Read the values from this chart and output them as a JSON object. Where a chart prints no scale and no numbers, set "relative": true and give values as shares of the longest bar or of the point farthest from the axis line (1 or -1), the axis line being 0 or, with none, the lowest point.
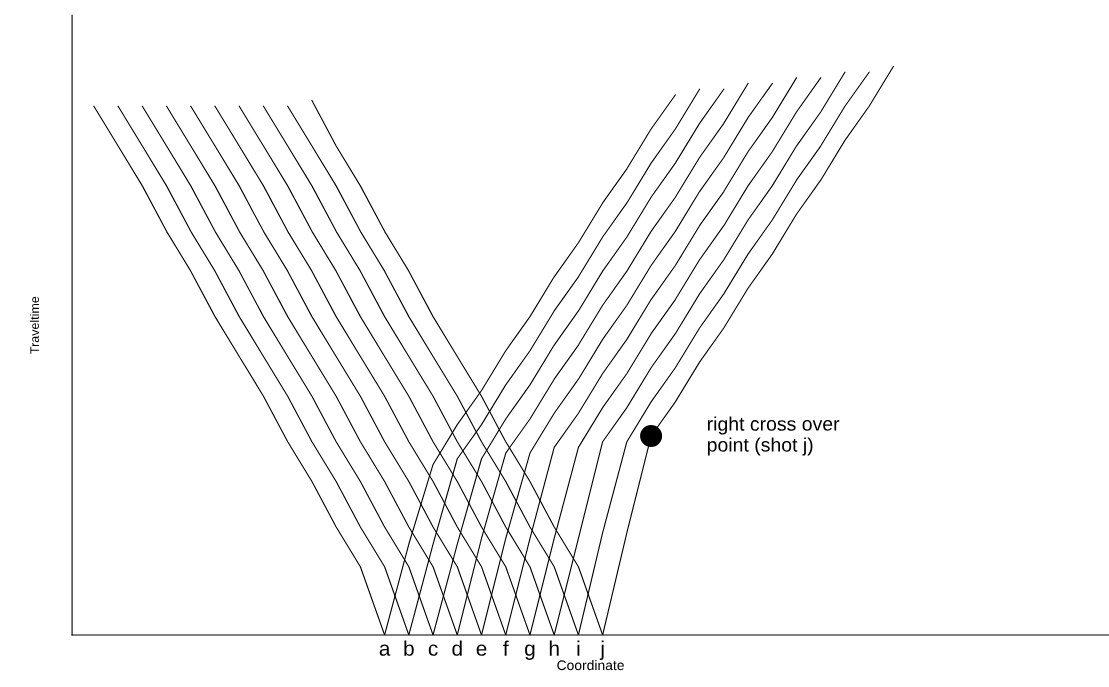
{
  "chart_data": {
    "type": "line",
    "relative": true,
    "xlabel": "Coordinate",
    "ylabel": "Traveltime",
    "categories": [
      null,
      null,
      null,
      null,
      null,
      null,
      null,
      null,
      null,
      null,
      null,
      null,
      "a",
      "b",
      "c",
      "d",
      "e",
      "f",
      "g",
      "h",
      "i",
      "j",
      null,
      null,
      null,
      null,
      null,
      null,
      null,
      null,
      null,
      null,
      null,
      null
    ],
    "marker": "none",
    "line_style": "solid",
    "grid": false,
    "legend": false,
    "series": [
      {
        "color": "#000000",
        "values": [
          0.93,
          0.86,
          0.79,
          0.71,
          0.64,
          0.56,
          0.49,
          0.42,
          0.34,
          0.27,
          0.19,
          0.12,
          0,
          null,
          null,
          null,
          null,
          null,
          null,
          null,
          null,
          null,
          null,
          null,
          null,
          null,
          null,
          null,
          null,
          null,
          null,
          null,
          null,
          null
        ]
      },
      {
        "color": "#000000",
        "values": [
          null,
          0.93,
          0.86,
          0.79,
          0.71,
          0.64,
          0.56,
          0.49,
          0.42,
          0.34,
          0.27,
          0.19,
          0.12,
          0,
          null,
          null,
          null,
          null,
          null,
          null,
          null,
          null,
          null,
          null,
          null,
          null,
          null,
          null,
          null,
          null,
          null,
          null,
          null,
          null
        ]
      },
      {
        "color": "#000000",
        "values": [
          null,
          null,
          0.93,
          0.86,
          0.79,
          0.71,
          0.64,
          0.56,
          0.49,
          0.42,
          0.34,
          0.27,
          0.19,
          0.12,
          0,
          null,
          null,
          null,
          null,
          null,
          null,
          null,
          null,
          null,
          null,
          null,
          null,
          null,
          null,
          null,
          null,
          null,
          null,
          null
        ]
      },
      {
        "color": "#000000",
        "values": [
          null,
          null,
          null,
          0.93,
          0.86,
          0.79,
          0.71,
          0.64,
          0.56,
          0.49,
          0.42,
          0.34,
          0.27,
          0.19,
          0.12,
          0,
          null,
          null,
          null,
          null,
          null,
          null,
          null,
          null,
          null,
          null,
          null,
          null,
          null,
          null,
          null,
          null,
          null,
          null
        ]
      },
      {
        "color": "#000000",
        "values": [
          null,
          null,
          null,
          null,
          0.93,
          0.86,
          0.79,
          0.71,
          0.64,
          0.56,
          0.49,
          0.42,
          0.34,
          0.27,
          0.19,
          0.12,
          0,
          null,
          null,
          null,
          null,
          null,
          null,
          null,
          null,
          null,
          null,
          null,
          null,
          null,
          null,
          null,
          null,
          null
        ]
      },
      {
        "color": "#000000",
        "values": [
          null,
          null,
          null,
          null,
          null,
          0.93,
          0.86,
          0.79,
          0.71,
          0.64,
          0.56,
          0.49,
          0.42,
          0.34,
          0.27,
          0.19,
          0.12,
          0,
          null,
          null,
          null,
          null,
          null,
          null,
          null,
          null,
          null,
          null,
          null,
          null,
          null,
          null,
          null,
          null
        ]
      },
      {
        "color": "#000000",
        "values": [
          null,
          null,
          null,
          null,
          null,
          null,
          0.93,
          0.86,
          0.79,
          0.71,
          0.64,
          0.56,
          0.49,
          0.42,
          0.34,
          0.27,
          0.19,
          0.12,
          0,
          null,
          null,
          null,
          null,
          null,
          null,
          null,
          null,
          null,
          null,
          null,
          null,
          null,
          null,
          null
        ]
      },
      {
        "color": "#000000",
        "values": [
          null,
          null,
          null,
          null,
          null,
          null,
          null,
          0.93,
          0.86,
          0.79,
          0.71,
          0.64,
          0.56,
          0.49,
          0.42,
          0.34,
          0.27,
          0.19,
          0.12,
          0,
          null,
          null,
          null,
          null,
          null,
          null,
          null,
          null,
          null,
          null,
          null,
          null,
          null,
          null
        ]
      },
      {
        "color": "#000000",
        "values": [
          null,
          null,
          null,
          null,
          null,
          null,
          null,
          null,
          0.93,
          0.86,
          0.79,
          0.71,
          0.64,
          0.56,
          0.49,
          0.42,
          0.34,
          0.27,
          0.19,
          0.12,
          0,
          null,
          null,
          null,
          null,
          null,
          null,
          null,
          null,
          null,
          null,
          null,
          null,
          null
        ]
      },
      {
        "color": "#000000",
        "values": [
          null,
          null,
          null,
          null,
          null,
          null,
          null,
          null,
          null,
          0.94,
          0.86,
          0.79,
          0.71,
          0.64,
          0.56,
          0.49,
          0.42,
          0.34,
          0.27,
          0.19,
          0.12,
          0,
          null,
          null,
          null,
          null,
          null,
          null,
          null,
          null,
          null,
          null,
          null,
          null
        ]
      },
      {
        "color": "#000000",
        "values": [
          null,
          null,
          null,
          null,
          null,
          null,
          null,
          null,
          null,
          null,
          null,
          null,
          0,
          0.16,
          0.3,
          0.37,
          0.43,
          0.5,
          0.56,
          0.63,
          0.69,
          0.76,
          0.82,
          0.89,
          0.95,
          null,
          null,
          null,
          null,
          null,
          null,
          null,
          null,
          null
        ]
      },
      {
        "color": "#000000",
        "values": [
          null,
          null,
          null,
          null,
          null,
          null,
          null,
          null,
          null,
          null,
          null,
          null,
          null,
          0,
          0.16,
          0.31,
          0.37,
          0.44,
          0.5,
          0.57,
          0.63,
          0.7,
          0.76,
          0.83,
          0.89,
          0.96,
          null,
          null,
          null,
          null,
          null,
          null,
          null,
          null
        ]
      },
      {
        "color": "#000000",
        "values": [
          null,
          null,
          null,
          null,
          null,
          null,
          null,
          null,
          null,
          null,
          null,
          null,
          null,
          null,
          0,
          0.16,
          0.31,
          0.38,
          0.44,
          0.51,
          0.57,
          0.64,
          0.7,
          0.77,
          0.83,
          0.9,
          0.96,
          null,
          null,
          null,
          null,
          null,
          null,
          null
        ]
      },
      {
        "color": "#000000",
        "values": [
          null,
          null,
          null,
          null,
          null,
          null,
          null,
          null,
          null,
          null,
          null,
          null,
          null,
          null,
          null,
          0,
          0.17,
          0.32,
          0.38,
          0.45,
          0.51,
          0.58,
          0.64,
          0.71,
          0.77,
          0.84,
          0.9,
          0.97,
          null,
          null,
          null,
          null,
          null,
          null
        ]
      },
      {
        "color": "#000000",
        "values": [
          null,
          null,
          null,
          null,
          null,
          null,
          null,
          null,
          null,
          null,
          null,
          null,
          null,
          null,
          null,
          null,
          0,
          0.17,
          0.32,
          0.39,
          0.45,
          0.52,
          0.58,
          0.65,
          0.71,
          0.78,
          0.84,
          0.91,
          0.97,
          null,
          null,
          null,
          null,
          null
        ]
      },
      {
        "color": "#000000",
        "values": [
          null,
          null,
          null,
          null,
          null,
          null,
          null,
          null,
          null,
          null,
          null,
          null,
          null,
          null,
          null,
          null,
          null,
          0,
          0.17,
          0.33,
          0.39,
          0.46,
          0.52,
          0.59,
          0.65,
          0.72,
          0.78,
          0.85,
          0.91,
          0.98,
          null,
          null,
          null,
          null
        ]
      },
      {
        "color": "#000000",
        "values": [
          null,
          null,
          null,
          null,
          null,
          null,
          null,
          null,
          null,
          null,
          null,
          null,
          null,
          null,
          null,
          null,
          null,
          null,
          0,
          0.17,
          0.33,
          0.4,
          0.46,
          0.53,
          0.59,
          0.66,
          0.72,
          0.79,
          0.85,
          0.92,
          0.98,
          null,
          null,
          null
        ]
      },
      {
        "color": "#000000",
        "values": [
          null,
          null,
          null,
          null,
          null,
          null,
          null,
          null,
          null,
          null,
          null,
          null,
          null,
          null,
          null,
          null,
          null,
          null,
          null,
          0,
          0.17,
          0.34,
          0.4,
          0.47,
          0.53,
          0.6,
          0.66,
          0.73,
          0.79,
          0.86,
          0.92,
          0.99,
          null,
          null
        ]
      },
      {
        "color": "#000000",
        "values": [
          null,
          null,
          null,
          null,
          null,
          null,
          null,
          null,
          null,
          null,
          null,
          null,
          null,
          null,
          null,
          null,
          null,
          null,
          null,
          null,
          0,
          0.18,
          0.34,
          0.41,
          0.47,
          0.54,
          0.6,
          0.67,
          0.73,
          0.8,
          0.86,
          0.93,
          0.99,
          null
        ]
      },
      {
        "color": "#000000",
        "values": [
          null,
          null,
          null,
          null,
          null,
          null,
          null,
          null,
          null,
          null,
          null,
          null,
          null,
          null,
          null,
          null,
          null,
          null,
          null,
          null,
          null,
          0,
          0.18,
          0.35,
          0.41,
          0.48,
          0.54,
          0.61,
          0.67,
          0.74,
          0.8,
          0.87,
          0.93,
          1.0
        ]
      },
      {
        "type": "scatter",
        "marker": "circle",
        "color": "#000000",
        "values": [
          null,
          null,
          null,
          null,
          null,
          null,
          null,
          null,
          null,
          null,
          null,
          null,
          null,
          null,
          null,
          null,
          null,
          null,
          null,
          null,
          null,
          null,
          null,
          0.35,
          null,
          null,
          null,
          null,
          null,
          null,
          null,
          null,
          null,
          null
        ]
      }
    ],
    "annotations": [
      "right cross over\npoint (shot j)"
    ]
  }
}
